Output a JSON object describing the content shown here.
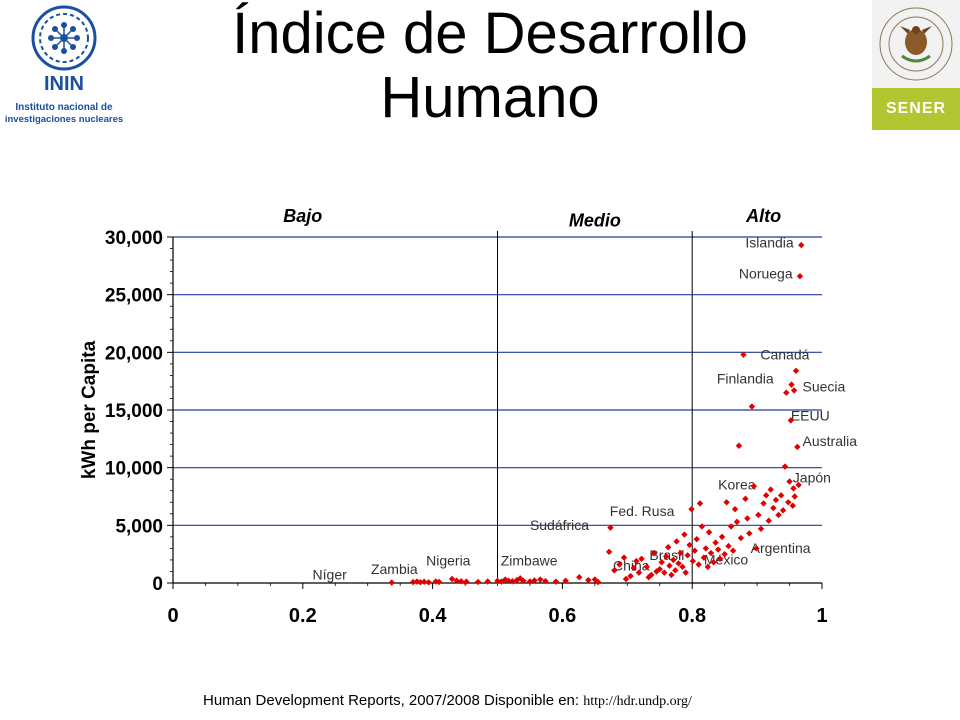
{
  "page": {
    "title_line1": "Índice de Desarrollo",
    "title_line2": "Humano",
    "footer_text": "Human Development Reports, 2007/2008 Disponible en: ",
    "footer_url": "http://hdr.undp.org/"
  },
  "logos": {
    "inin_abbr": "ININ",
    "inin_line1": "Instituto nacional de",
    "inin_line2": "investigaciones nucleares",
    "sener_label": "SENER",
    "seal_text": "ESTADOS UNIDOS MEXICANOS",
    "inin_color": "#1b4fa0",
    "sener_color": "#b2c631"
  },
  "chart_data": {
    "type": "scatter",
    "title": "",
    "xlabel": "",
    "ylabel": "kWh per Capita",
    "xlim": [
      0,
      1
    ],
    "ylim": [
      0,
      30000
    ],
    "x_ticks": [
      0,
      0.2,
      0.4,
      0.6,
      0.8,
      1
    ],
    "x_tick_labels": [
      "0",
      "0.2",
      "0.4",
      "0.6",
      "0.8",
      "1"
    ],
    "y_ticks": [
      0,
      5000,
      10000,
      15000,
      20000,
      25000,
      30000
    ],
    "y_tick_labels": [
      "0",
      "5,000",
      "10,000",
      "15,000",
      "20,000",
      "25,000",
      "30,000"
    ],
    "grid": "horizontal",
    "marker_color": "#e00000",
    "region_dividers": [
      0.5,
      0.8
    ],
    "regions": [
      {
        "label": "Bajo",
        "x": 0.2,
        "y": 31300
      },
      {
        "label": "Medio",
        "x": 0.65,
        "y": 30900
      },
      {
        "label": "Alto",
        "x": 0.91,
        "y": 31300
      }
    ],
    "annotations": [
      {
        "text": "Islandia",
        "x": 0.882,
        "y": 29100
      },
      {
        "text": "Noruega",
        "x": 0.872,
        "y": 26400
      },
      {
        "text": "Canadá",
        "x": 0.905,
        "y": 19400
      },
      {
        "text": "Finlandia",
        "x": 0.838,
        "y": 17300
      },
      {
        "text": "Suecia",
        "x": 0.97,
        "y": 16600
      },
      {
        "text": "EEUU",
        "x": 0.952,
        "y": 14100
      },
      {
        "text": "Australia",
        "x": 0.97,
        "y": 11900
      },
      {
        "text": "Japón",
        "x": 0.955,
        "y": 8700
      },
      {
        "text": "Korea",
        "x": 0.84,
        "y": 8100
      },
      {
        "text": "Fed. Rusa",
        "x": 0.673,
        "y": 5800
      },
      {
        "text": "Sudáfrica",
        "x": 0.55,
        "y": 4600
      },
      {
        "text": "Argentina",
        "x": 0.89,
        "y": 2600
      },
      {
        "text": "Brasil",
        "x": 0.734,
        "y": 2000
      },
      {
        "text": "México",
        "x": 0.818,
        "y": 1600
      },
      {
        "text": "China",
        "x": 0.678,
        "y": 1100
      },
      {
        "text": "Zimbawe",
        "x": 0.505,
        "y": 1500
      },
      {
        "text": "Nigeria",
        "x": 0.39,
        "y": 1500
      },
      {
        "text": "Zambia",
        "x": 0.305,
        "y": 800
      },
      {
        "text": "Níger",
        "x": 0.215,
        "y": 300
      }
    ],
    "points": [
      [
        0.337,
        40
      ],
      [
        0.37,
        80
      ],
      [
        0.376,
        120
      ],
      [
        0.381,
        70
      ],
      [
        0.387,
        110
      ],
      [
        0.394,
        60
      ],
      [
        0.405,
        130
      ],
      [
        0.41,
        90
      ],
      [
        0.43,
        350
      ],
      [
        0.437,
        200
      ],
      [
        0.444,
        150
      ],
      [
        0.452,
        120
      ],
      [
        0.47,
        90
      ],
      [
        0.485,
        130
      ],
      [
        0.5,
        180
      ],
      [
        0.506,
        120
      ],
      [
        0.512,
        300
      ],
      [
        0.517,
        200
      ],
      [
        0.523,
        150
      ],
      [
        0.53,
        250
      ],
      [
        0.535,
        400
      ],
      [
        0.54,
        180
      ],
      [
        0.55,
        130
      ],
      [
        0.557,
        220
      ],
      [
        0.566,
        300
      ],
      [
        0.574,
        160
      ],
      [
        0.59,
        120
      ],
      [
        0.605,
        200
      ],
      [
        0.626,
        500
      ],
      [
        0.64,
        250
      ],
      [
        0.65,
        300
      ],
      [
        0.655,
        80
      ],
      [
        0.674,
        4800
      ],
      [
        0.672,
        2700
      ],
      [
        0.68,
        1100
      ],
      [
        0.688,
        1600
      ],
      [
        0.695,
        2200
      ],
      [
        0.698,
        350
      ],
      [
        0.705,
        600
      ],
      [
        0.71,
        1300
      ],
      [
        0.714,
        1900
      ],
      [
        0.718,
        900
      ],
      [
        0.722,
        2100
      ],
      [
        0.73,
        1400
      ],
      [
        0.733,
        500
      ],
      [
        0.737,
        700
      ],
      [
        0.741,
        2600
      ],
      [
        0.745,
        1000
      ],
      [
        0.75,
        1200
      ],
      [
        0.753,
        1800
      ],
      [
        0.757,
        900
      ],
      [
        0.76,
        2300
      ],
      [
        0.763,
        3100
      ],
      [
        0.765,
        1500
      ],
      [
        0.768,
        700
      ],
      [
        0.771,
        2000
      ],
      [
        0.774,
        1100
      ],
      [
        0.776,
        3600
      ],
      [
        0.779,
        1700
      ],
      [
        0.782,
        2600
      ],
      [
        0.785,
        1400
      ],
      [
        0.788,
        4200
      ],
      [
        0.79,
        900
      ],
      [
        0.793,
        2400
      ],
      [
        0.796,
        3300
      ],
      [
        0.799,
        6400
      ],
      [
        0.801,
        1900
      ],
      [
        0.804,
        2800
      ],
      [
        0.807,
        3800
      ],
      [
        0.81,
        1600
      ],
      [
        0.812,
        6900
      ],
      [
        0.815,
        4900
      ],
      [
        0.818,
        2200
      ],
      [
        0.821,
        3000
      ],
      [
        0.824,
        1400
      ],
      [
        0.826,
        4400
      ],
      [
        0.829,
        2600
      ],
      [
        0.833,
        1800
      ],
      [
        0.836,
        3500
      ],
      [
        0.84,
        2900
      ],
      [
        0.843,
        2100
      ],
      [
        0.846,
        4000
      ],
      [
        0.85,
        2500
      ],
      [
        0.853,
        7000
      ],
      [
        0.856,
        3200
      ],
      [
        0.86,
        4900
      ],
      [
        0.863,
        2800
      ],
      [
        0.866,
        6400
      ],
      [
        0.869,
        5300
      ],
      [
        0.872,
        11900
      ],
      [
        0.875,
        3900
      ],
      [
        0.879,
        19800
      ],
      [
        0.882,
        7300
      ],
      [
        0.885,
        5600
      ],
      [
        0.888,
        4300
      ],
      [
        0.892,
        15300
      ],
      [
        0.895,
        8400
      ],
      [
        0.899,
        3000
      ],
      [
        0.902,
        5900
      ],
      [
        0.906,
        4700
      ],
      [
        0.91,
        6900
      ],
      [
        0.914,
        7600
      ],
      [
        0.918,
        5400
      ],
      [
        0.921,
        8100
      ],
      [
        0.925,
        6500
      ],
      [
        0.929,
        7200
      ],
      [
        0.933,
        5900
      ],
      [
        0.937,
        7600
      ],
      [
        0.94,
        6300
      ],
      [
        0.943,
        10100
      ],
      [
        0.945,
        16500
      ],
      [
        0.948,
        7000
      ],
      [
        0.95,
        8800
      ],
      [
        0.952,
        14100
      ],
      [
        0.953,
        17200
      ],
      [
        0.955,
        6700
      ],
      [
        0.957,
        16700
      ],
      [
        0.958,
        7500
      ],
      [
        0.96,
        18400
      ],
      [
        0.962,
        11800
      ],
      [
        0.964,
        8500
      ],
      [
        0.966,
        26600
      ],
      [
        0.968,
        29300
      ],
      [
        0.956,
        8200
      ]
    ]
  }
}
